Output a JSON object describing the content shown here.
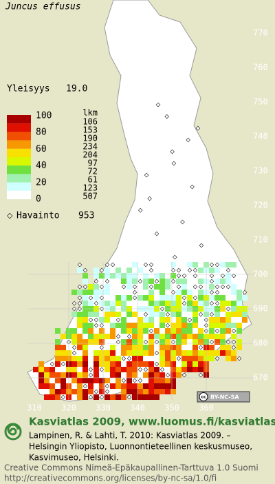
{
  "title": "Juncus effusus",
  "frequency": {
    "label": "Yleisyys",
    "value": "19.0"
  },
  "legend": {
    "count_header": "lkm",
    "scale_labels": [
      "100",
      "80",
      "60",
      "40",
      "20",
      "0"
    ],
    "colors": [
      "#a80000",
      "#e01000",
      "#f05000",
      "#f89800",
      "#f8e000",
      "#d8f800",
      "#70e040",
      "#a0f0b0",
      "#d0ffff",
      "#ffffff"
    ],
    "counts": [
      106,
      153,
      190,
      234,
      204,
      97,
      72,
      61,
      123,
      507
    ]
  },
  "observations": {
    "label": "Havainto",
    "count": 953
  },
  "y_axis_labels": [
    770,
    760,
    750,
    740,
    730,
    720,
    710,
    700,
    690,
    680,
    670
  ],
  "x_axis_labels": [
    310,
    320,
    330,
    340,
    350,
    360
  ],
  "license_badge": {
    "cc": "cc",
    "text": "BY-NC-SA"
  },
  "footer": {
    "site": "Kasviatlas 2009, www.luomus.fi/kasviatlas",
    "citation_lines": [
      "Lampinen, R. & Lahti, T. 2010: Kasviatlas 2009. –",
      "Helsingin Yliopisto, Luonnontieteellinen keskusmuseo,",
      "Kasvimuseo, Helsinki."
    ],
    "license_lines": [
      "Creative Commons Nimeä-Epäkaupallinen-Tarttuva 1.0 Suomi",
      "http://creativecommons.org/licenses/by-nc-sa/1.0/fi"
    ]
  }
}
